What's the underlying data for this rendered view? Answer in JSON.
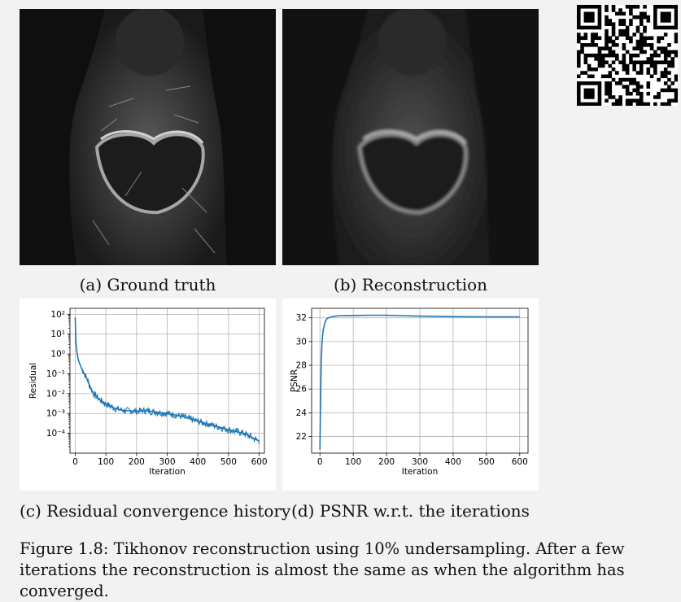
{
  "subfigures": {
    "a": {
      "caption": "(a) Ground truth"
    },
    "b": {
      "caption": "(b) Reconstruction"
    },
    "c": {
      "caption": "(c) Residual convergence history"
    },
    "d": {
      "caption": "(d) PSNR w.r.t. the iterations"
    }
  },
  "figure_caption": "Figure 1.8: Tikhonov reconstruction using 10% undersampling. After a few iterations the reconstruction is almost the same as when the algorithm has converged.",
  "chart_data": [
    {
      "type": "line",
      "xlabel": "Iteration",
      "ylabel": "Residual",
      "yscale": "log",
      "xlim": [
        -17,
        617
      ],
      "ylim": [
        1e-05,
        200
      ],
      "xticks": [
        0,
        100,
        200,
        300,
        400,
        500,
        600
      ],
      "yticks": [
        {
          "value": 100,
          "label": "10²"
        },
        {
          "value": 10,
          "label": "10¹"
        },
        {
          "value": 1,
          "label": "10⁰"
        },
        {
          "value": 0.1,
          "label": "10⁻¹"
        },
        {
          "value": 0.01,
          "label": "10⁻²"
        },
        {
          "value": 0.001,
          "label": "10⁻³"
        },
        {
          "value": 0.0001,
          "label": "10⁻⁴"
        }
      ],
      "grid": true,
      "color": "#1f77b4",
      "series": [
        {
          "x": [
            0,
            2,
            5,
            10,
            20,
            30,
            40,
            50,
            60,
            80,
            100,
            130,
            160,
            200,
            230,
            260,
            300,
            350,
            400,
            450,
            500,
            550,
            600
          ],
          "y": [
            70,
            5,
            1.5,
            0.5,
            0.2,
            0.1,
            0.05,
            0.02,
            0.01,
            0.005,
            0.003,
            0.0018,
            0.0014,
            0.0013,
            0.0014,
            0.0012,
            0.001,
            0.0007,
            0.0004,
            0.00025,
            0.00015,
            0.0001,
            4e-05
          ]
        }
      ]
    },
    {
      "type": "line",
      "xlabel": "Iteration",
      "ylabel": "PSNR",
      "xlim": [
        -25,
        625
      ],
      "ylim": [
        20.6,
        32.8
      ],
      "xticks": [
        0,
        100,
        200,
        300,
        400,
        500,
        600
      ],
      "yticks": [
        22,
        24,
        26,
        28,
        30,
        32
      ],
      "grid": true,
      "color": "#1f77b4",
      "series": [
        {
          "x": [
            0,
            2,
            4,
            6,
            8,
            10,
            15,
            20,
            30,
            40,
            60,
            100,
            150,
            200,
            250,
            300,
            400,
            500,
            600
          ],
          "y": [
            20.9,
            25.0,
            28.5,
            29.8,
            30.5,
            31.0,
            31.6,
            31.9,
            32.05,
            32.12,
            32.18,
            32.2,
            32.22,
            32.22,
            32.18,
            32.14,
            32.1,
            32.08,
            32.08
          ]
        }
      ]
    }
  ]
}
